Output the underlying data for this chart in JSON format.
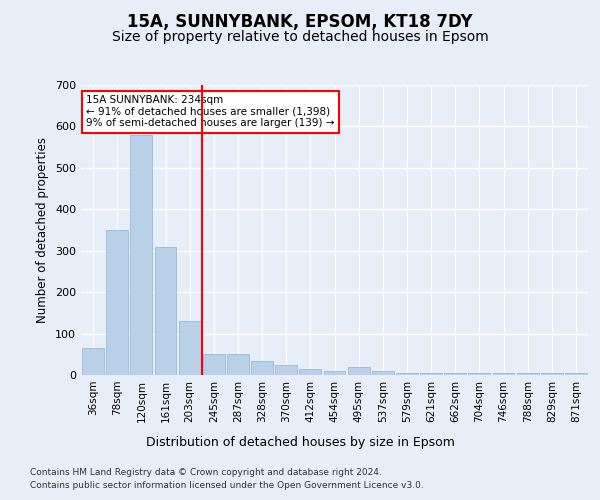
{
  "title1": "15A, SUNNYBANK, EPSOM, KT18 7DY",
  "title2": "Size of property relative to detached houses in Epsom",
  "xlabel": "Distribution of detached houses by size in Epsom",
  "ylabel": "Number of detached properties",
  "categories": [
    "36sqm",
    "78sqm",
    "120sqm",
    "161sqm",
    "203sqm",
    "245sqm",
    "287sqm",
    "328sqm",
    "370sqm",
    "412sqm",
    "454sqm",
    "495sqm",
    "537sqm",
    "579sqm",
    "621sqm",
    "662sqm",
    "704sqm",
    "746sqm",
    "788sqm",
    "829sqm",
    "871sqm"
  ],
  "values": [
    65,
    350,
    580,
    310,
    130,
    50,
    50,
    35,
    25,
    15,
    10,
    20,
    10,
    5,
    5,
    5,
    5,
    5,
    5,
    5,
    5
  ],
  "bar_color": "#b8d0e8",
  "bar_edge_color": "#8ab4d4",
  "redline_x": 4.5,
  "annotation_title": "15A SUNNYBANK: 234sqm",
  "annotation_line1": "← 91% of detached houses are smaller (1,398)",
  "annotation_line2": "9% of semi-detached houses are larger (139) →",
  "ylim": [
    0,
    700
  ],
  "yticks": [
    0,
    100,
    200,
    300,
    400,
    500,
    600,
    700
  ],
  "footer1": "Contains HM Land Registry data © Crown copyright and database right 2024.",
  "footer2": "Contains public sector information licensed under the Open Government Licence v3.0.",
  "bg_color": "#e8eef8",
  "plot_bg_color": "#e8eef8",
  "grid_color": "#ffffff",
  "title_fontsize": 12,
  "subtitle_fontsize": 10,
  "footer_fontsize": 6.5
}
